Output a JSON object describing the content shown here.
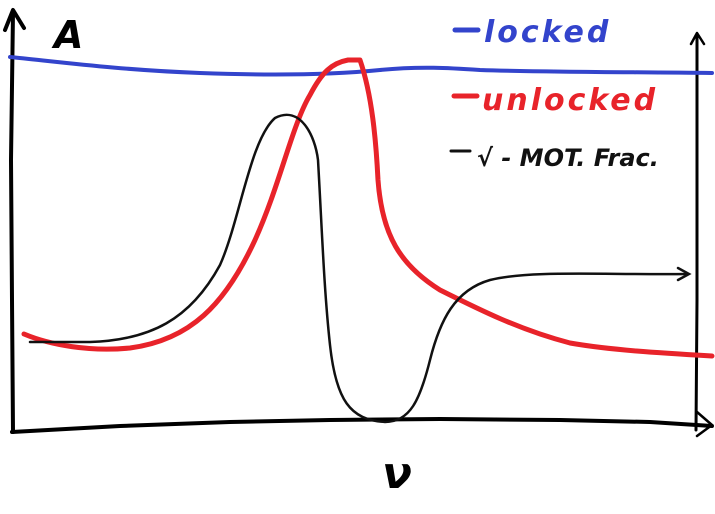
{
  "axes": {
    "y_label": "A",
    "x_label": "ν"
  },
  "legend": {
    "entries": [
      {
        "label": "locked",
        "color": "#3344cc"
      },
      {
        "label": "unlocked",
        "color": "#e8232a"
      },
      {
        "label": "√ - MOT. Frac.",
        "color": "#111111"
      }
    ]
  }
}
